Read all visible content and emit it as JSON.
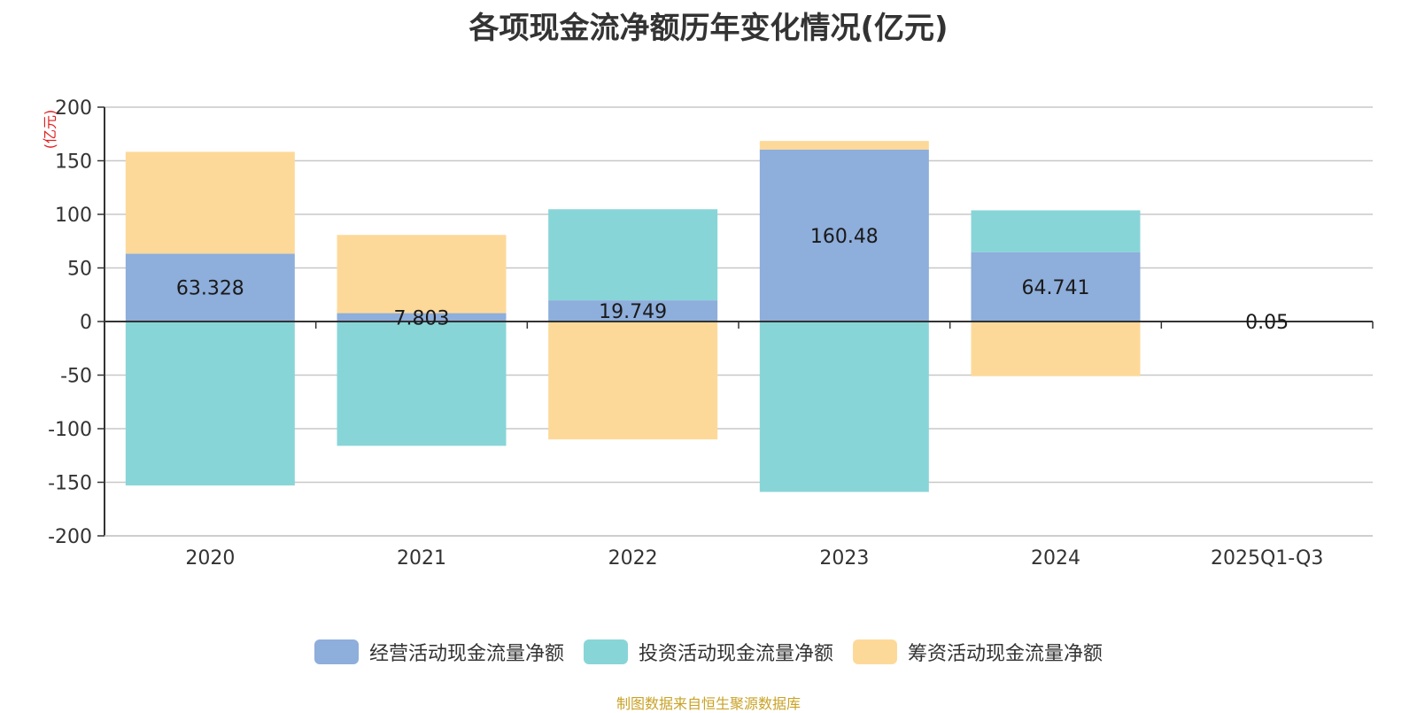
{
  "chart_data": {
    "type": "bar",
    "stacked": true,
    "title": "各项现金流净额历年变化情况(亿元)",
    "ylabel": "(亿元)",
    "ylim": [
      -200,
      200
    ],
    "yticks": [
      200,
      150,
      100,
      50,
      0,
      -50,
      -100,
      -150,
      -200
    ],
    "categories": [
      "2020",
      "2021",
      "2022",
      "2023",
      "2024",
      "2025Q1-Q3"
    ],
    "series": [
      {
        "name": "经营活动现金流量净额",
        "color": "#8eaedb",
        "values": [
          63.328,
          7.803,
          19.749,
          160.48,
          64.741,
          0.05
        ],
        "labels": [
          "63.328",
          "7.803",
          "19.749",
          "160.48",
          "64.741",
          "0.05"
        ]
      },
      {
        "name": "投资活动现金流量净额",
        "color": "#88d5d8",
        "values": [
          -153,
          -116,
          85,
          -159,
          39,
          0
        ]
      },
      {
        "name": "筹资活动现金流量净额",
        "color": "#fdd999",
        "values": [
          95,
          73,
          -110,
          8,
          -51,
          0
        ]
      }
    ],
    "legend_position": "bottom",
    "grid": true
  },
  "source": "制图数据来自恒生聚源数据库"
}
